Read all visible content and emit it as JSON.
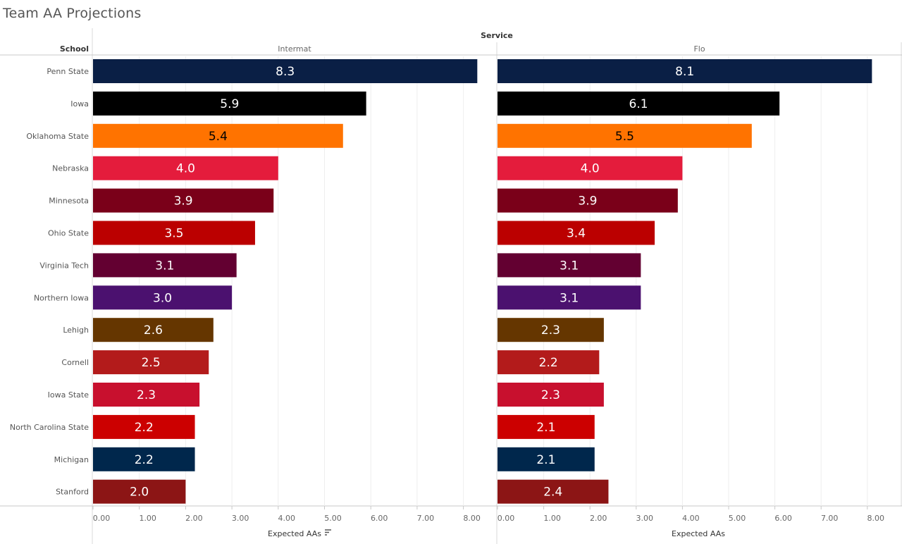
{
  "title": "Team AA Projections",
  "header": {
    "service_label": "Service",
    "school_label": "School"
  },
  "chart_data": {
    "type": "bar",
    "orientation": "horizontal",
    "categories": [
      "Penn State",
      "Iowa",
      "Oklahoma State",
      "Nebraska",
      "Minnesota",
      "Ohio State",
      "Virginia Tech",
      "Northern Iowa",
      "Lehigh",
      "Cornell",
      "Iowa State",
      "North Carolina State",
      "Michigan",
      "Stanford"
    ],
    "colors": [
      "#0a1f45",
      "#000000",
      "#ff7300",
      "#e41c3c",
      "#7a0019",
      "#bb0000",
      "#630031",
      "#4b116f",
      "#653600",
      "#b31b1b",
      "#c8102e",
      "#cc0000",
      "#00274c",
      "#8c1515"
    ],
    "label_colors": [
      "#ffffff",
      "#ffffff",
      "#000000",
      "#ffffff",
      "#ffffff",
      "#ffffff",
      "#ffffff",
      "#ffffff",
      "#ffffff",
      "#ffffff",
      "#ffffff",
      "#ffffff",
      "#ffffff",
      "#ffffff"
    ],
    "panels": [
      {
        "name": "Intermat",
        "xlabel": "Expected AAs",
        "sort_icon": "sort-descending-icon",
        "values": [
          8.3,
          5.9,
          5.4,
          4.0,
          3.9,
          3.5,
          3.1,
          3.0,
          2.6,
          2.5,
          2.3,
          2.2,
          2.2,
          2.0
        ],
        "labels": [
          "8.3",
          "5.9",
          "5.4",
          "4.0",
          "3.9",
          "3.5",
          "3.1",
          "3.0",
          "2.6",
          "2.5",
          "2.3",
          "2.2",
          "2.2",
          "2.0"
        ]
      },
      {
        "name": "Flo",
        "xlabel": "Expected AAs",
        "values": [
          8.1,
          6.1,
          5.5,
          4.0,
          3.9,
          3.4,
          3.1,
          3.1,
          2.3,
          2.2,
          2.3,
          2.1,
          2.1,
          2.4
        ],
        "labels": [
          "8.1",
          "6.1",
          "5.5",
          "4.0",
          "3.9",
          "3.4",
          "3.1",
          "3.1",
          "2.3",
          "2.2",
          "2.3",
          "2.1",
          "2.1",
          "2.4"
        ]
      }
    ],
    "xlim": [
      0,
      8.3
    ],
    "ticks": [
      "0.00",
      "1.00",
      "2.00",
      "3.00",
      "4.00",
      "5.00",
      "6.00",
      "7.00",
      "8.00"
    ],
    "grid": true
  }
}
